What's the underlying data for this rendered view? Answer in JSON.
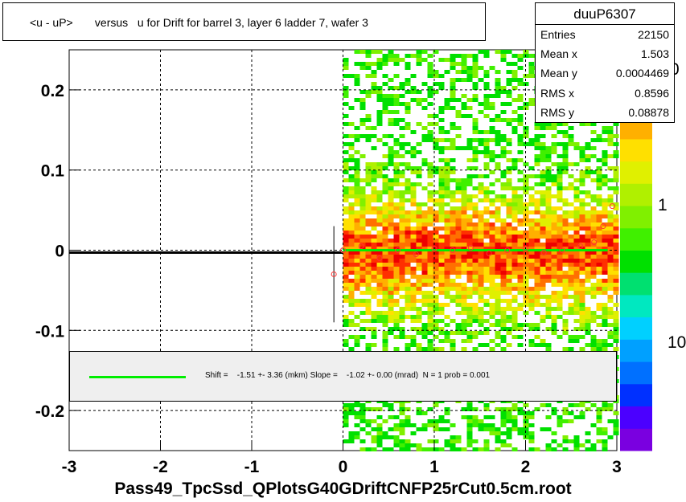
{
  "title": "<u - uP>       versus   u for Drift for barrel 3, layer 6 ladder 7, wafer 3",
  "stats": {
    "name": "duuP6307",
    "rows": [
      {
        "k": "Entries",
        "v": "22150"
      },
      {
        "k": "Mean x",
        "v": "1.503"
      },
      {
        "k": "Mean y",
        "v": "0.0004469"
      },
      {
        "k": "RMS x",
        "v": "0.8596"
      },
      {
        "k": "RMS y",
        "v": "0.08878"
      }
    ]
  },
  "fit_text": "Shift =    -1.51 +- 3.36 (mkm) Slope =    -1.02 +- 0.00 (mrad)  N = 1 prob = 0.001",
  "footer": "Pass49_TpcSsd_QPlotsG40GDriftCNFP25rCut0.5cm.root",
  "chart_data": {
    "type": "heatmap",
    "title": "<u - uP>       versus   u for Drift for barrel 3, layer 6 ladder 7, wafer 3",
    "xlabel": "",
    "ylabel": "",
    "xlim": [
      -3,
      3
    ],
    "ylim": [
      -0.25,
      0.25
    ],
    "x_ticks": [
      "-3",
      "-2",
      "-1",
      "0",
      "1",
      "2",
      "3"
    ],
    "y_ticks": [
      "-0.2",
      "-0.1",
      "0",
      "0.1",
      "0.2"
    ],
    "z_ticks": [
      "1",
      "10"
    ],
    "z_top_label_partial": "0",
    "grid": true,
    "heat_region_x": [
      0.0,
      3.0
    ],
    "profile_points": [
      {
        "x": -0.1,
        "y": -0.03
      },
      {
        "x": 0.0,
        "y": 0.0
      },
      {
        "x": 0.2,
        "y": 0.005
      },
      {
        "x": 0.4,
        "y": -0.01
      },
      {
        "x": 0.6,
        "y": 0.0
      },
      {
        "x": 0.8,
        "y": -0.005
      },
      {
        "x": 1.0,
        "y": 0.002
      },
      {
        "x": 1.2,
        "y": 0.0
      },
      {
        "x": 1.4,
        "y": 0.003
      },
      {
        "x": 1.6,
        "y": -0.004
      },
      {
        "x": 1.8,
        "y": 0.0
      },
      {
        "x": 2.0,
        "y": 0.002
      },
      {
        "x": 2.2,
        "y": -0.003
      },
      {
        "x": 2.4,
        "y": 0.0
      },
      {
        "x": 2.6,
        "y": 0.005
      },
      {
        "x": 2.75,
        "y": 0.01
      },
      {
        "x": 2.85,
        "y": 0.03
      },
      {
        "x": 2.95,
        "y": 0.055
      }
    ],
    "fit_line": {
      "x_range": [
        0.0,
        2.9
      ],
      "y": 0.0
    },
    "black_line": {
      "x_range": [
        -3.0,
        0.0
      ],
      "y": -0.003
    },
    "colors": {
      "fit": "#00ee00",
      "points": "#ff3333",
      "palette": [
        "#7a00e0",
        "#4b00ff",
        "#0030ff",
        "#0070ff",
        "#00a0ff",
        "#00d0ff",
        "#00e8c0",
        "#00e070",
        "#00e000",
        "#40f000",
        "#80f000",
        "#b0f000",
        "#e0f000",
        "#ffe000",
        "#ffb000",
        "#ff7000",
        "#ff3000",
        "#ee0000"
      ]
    }
  }
}
